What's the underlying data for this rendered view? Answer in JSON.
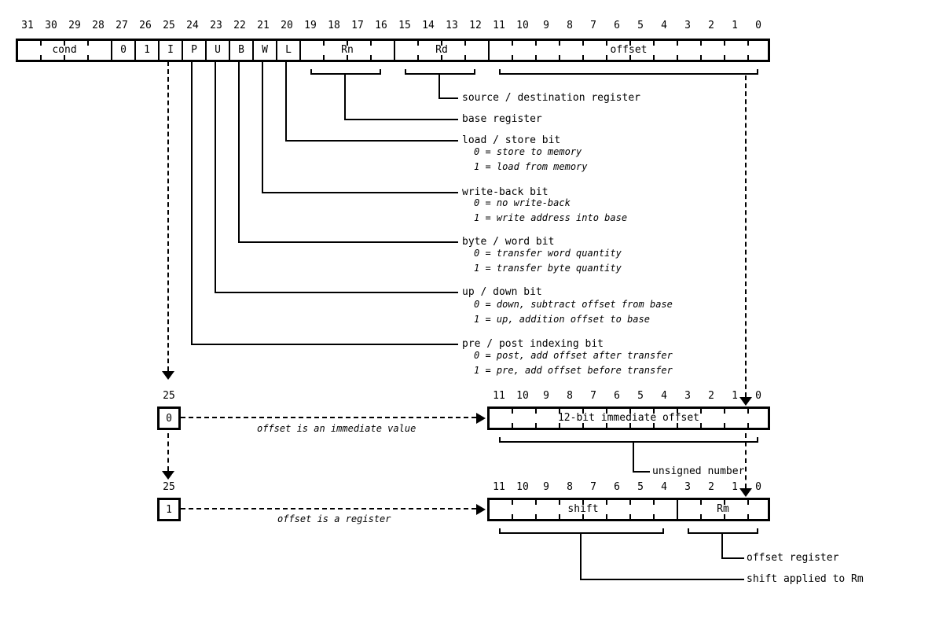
{
  "colors": {
    "ink": "#000000",
    "background": "#ffffff"
  },
  "top_register": {
    "bit_numbers": [
      "31",
      "30",
      "29",
      "28",
      "27",
      "26",
      "25",
      "24",
      "23",
      "22",
      "21",
      "20",
      "19",
      "18",
      "17",
      "16",
      "15",
      "14",
      "13",
      "12",
      "11",
      "10",
      "9",
      "8",
      "7",
      "6",
      "5",
      "4",
      "3",
      "2",
      "1",
      "0"
    ],
    "fields": [
      {
        "label": "cond",
        "bits": 4
      },
      {
        "label": "0",
        "bits": 1
      },
      {
        "label": "1",
        "bits": 1
      },
      {
        "label": "I",
        "bits": 1
      },
      {
        "label": "P",
        "bits": 1
      },
      {
        "label": "U",
        "bits": 1
      },
      {
        "label": "B",
        "bits": 1
      },
      {
        "label": "W",
        "bits": 1
      },
      {
        "label": "L",
        "bits": 1
      },
      {
        "label": "Rn",
        "bits": 4
      },
      {
        "label": "Rd",
        "bits": 4
      },
      {
        "label": "offset",
        "bits": 12
      }
    ]
  },
  "annotations": [
    {
      "label": "source / destination register",
      "lines": []
    },
    {
      "label": "base register",
      "lines": []
    },
    {
      "label": "load / store bit",
      "lines": [
        "0 = store to memory",
        "1 = load from memory"
      ]
    },
    {
      "label": "write-back bit",
      "lines": [
        "0 = no write-back",
        "1 = write address into base"
      ]
    },
    {
      "label": "byte / word bit",
      "lines": [
        "0 = transfer word quantity",
        "1 = transfer byte quantity"
      ]
    },
    {
      "label": "up / down bit",
      "lines": [
        "0 = down, subtract offset from base",
        "1 = up, addition offset to base"
      ]
    },
    {
      "label": "pre / post indexing bit",
      "lines": [
        "0 = post, add offset after transfer",
        "1 = pre, add offset before transfer"
      ]
    }
  ],
  "immediate_variant": {
    "selector_bit_number": "25",
    "selector_value": "0",
    "note": "offset is an immediate value",
    "bit_numbers": [
      "11",
      "10",
      "9",
      "8",
      "7",
      "6",
      "5",
      "4",
      "3",
      "2",
      "1",
      "0"
    ],
    "field_label": "12-bit immediate offset",
    "bracket_label": "unsigned number"
  },
  "register_variant": {
    "selector_bit_number": "25",
    "selector_value": "1",
    "note": "offset is a register",
    "bit_numbers": [
      "11",
      "10",
      "9",
      "8",
      "7",
      "6",
      "5",
      "4",
      "3",
      "2",
      "1",
      "0"
    ],
    "fields": [
      {
        "label": "shift",
        "bits": 8
      },
      {
        "label": "Rm",
        "bits": 4
      }
    ],
    "rm_bracket_label": "offset register",
    "shift_bracket_label": "shift applied to Rm"
  }
}
